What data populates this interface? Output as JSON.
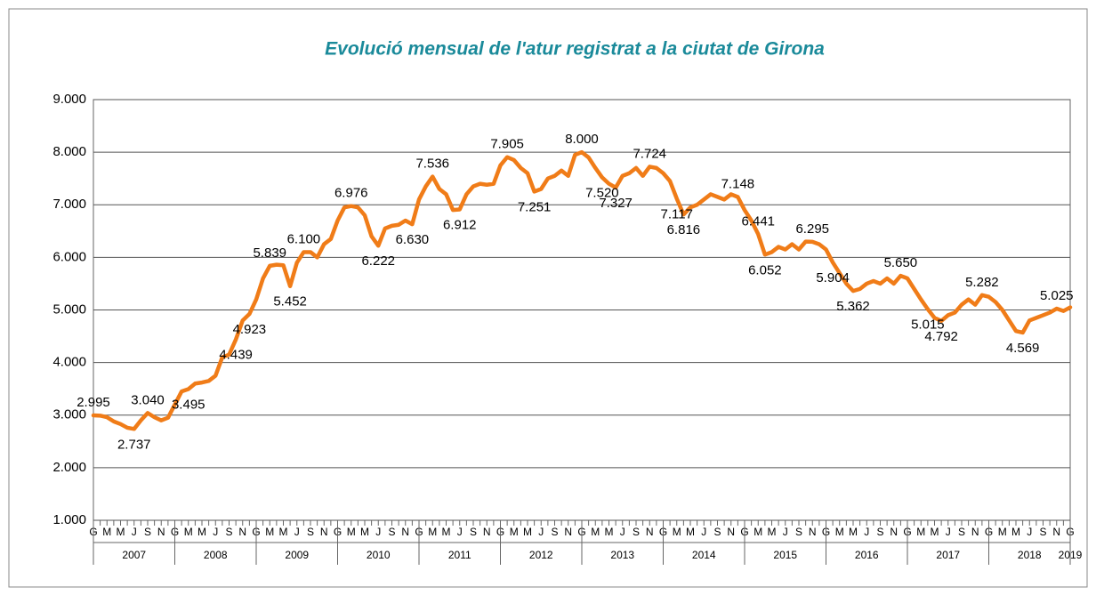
{
  "chart_data": {
    "type": "line",
    "title": "Evolució mensual de l'atur registrat a la ciutat de Girona",
    "categories": [
      "G",
      null,
      "M",
      null,
      "M",
      null,
      "J",
      null,
      "S",
      null,
      "N",
      null,
      "G",
      null,
      "M",
      null,
      "M",
      null,
      "J",
      null,
      "S",
      null,
      "N",
      null,
      "G",
      null,
      "M",
      null,
      "M",
      null,
      "J",
      null,
      "S",
      null,
      "N",
      null,
      "G",
      null,
      "M",
      null,
      "M",
      null,
      "J",
      null,
      "S",
      null,
      "N",
      null,
      "G",
      null,
      "M",
      null,
      "M",
      null,
      "J",
      null,
      "S",
      null,
      "N",
      null,
      "G",
      null,
      "M",
      null,
      "M",
      null,
      "J",
      null,
      "S",
      null,
      "N",
      null,
      "G",
      null,
      "M",
      null,
      "M",
      null,
      "J",
      null,
      "S",
      null,
      "N",
      null,
      "G",
      null,
      "M",
      null,
      "M",
      null,
      "J",
      null,
      "S",
      null,
      "N",
      null,
      "G",
      null,
      "M",
      null,
      "M",
      null,
      "J",
      null,
      "S",
      null,
      "N",
      null,
      "G",
      null,
      "M",
      null,
      "M",
      null,
      "J",
      null,
      "S",
      null,
      "N",
      null,
      "G",
      null,
      "M",
      null,
      "M",
      null,
      "J",
      null,
      "S",
      null,
      "N",
      null,
      "G",
      null,
      "M",
      null,
      "M",
      null,
      "J",
      null,
      "S",
      null,
      "N",
      null,
      "G"
    ],
    "year_groups": [
      "2007",
      "2008",
      "2009",
      "2010",
      "2011",
      "2012",
      "2013",
      "2014",
      "2015",
      "2016",
      "2017",
      "2018",
      "2019"
    ],
    "series": [
      {
        "name": "Atur registrat",
        "color": "#f07c18",
        "values": [
          2995,
          2990,
          2960,
          2880,
          2830,
          2760,
          2737,
          2900,
          3040,
          2960,
          2900,
          2950,
          3200,
          3450,
          3495,
          3600,
          3620,
          3650,
          3750,
          4100,
          4150,
          4439,
          4800,
          4923,
          5200,
          5600,
          5839,
          5860,
          5850,
          5452,
          5900,
          6100,
          6100,
          6000,
          6250,
          6350,
          6700,
          6950,
          6976,
          6950,
          6800,
          6400,
          6222,
          6550,
          6600,
          6620,
          6700,
          6630,
          7100,
          7350,
          7536,
          7300,
          7200,
          6900,
          6912,
          7200,
          7350,
          7400,
          7380,
          7400,
          7750,
          7905,
          7850,
          7700,
          7600,
          7251,
          7300,
          7500,
          7550,
          7650,
          7550,
          7950,
          8000,
          7900,
          7700,
          7520,
          7400,
          7327,
          7550,
          7600,
          7700,
          7550,
          7724,
          7700,
          7600,
          7450,
          7117,
          6816,
          6950,
          7000,
          7100,
          7200,
          7150,
          7100,
          7200,
          7148,
          6900,
          6700,
          6441,
          6052,
          6100,
          6200,
          6150,
          6250,
          6150,
          6300,
          6295,
          6250,
          6150,
          5904,
          5700,
          5500,
          5362,
          5400,
          5500,
          5550,
          5500,
          5600,
          5500,
          5650,
          5600,
          5400,
          5200,
          5015,
          4850,
          4792,
          4900,
          4950,
          5100,
          5200,
          5100,
          5282,
          5250,
          5150,
          5000,
          4800,
          4600,
          4569,
          4800,
          4850,
          4900,
          4950,
          5025,
          4980,
          5050
        ],
        "value_labels": [
          "2.995",
          null,
          null,
          null,
          null,
          null,
          "2.737",
          null,
          "3.040",
          null,
          null,
          null,
          null,
          null,
          "3.495",
          null,
          null,
          null,
          null,
          null,
          null,
          "4.439",
          null,
          "4.923",
          null,
          null,
          "5.839",
          null,
          null,
          "5.452",
          null,
          "6.100",
          null,
          null,
          null,
          null,
          null,
          null,
          "6.976",
          null,
          null,
          null,
          "6.222",
          null,
          null,
          null,
          null,
          "6.630",
          null,
          null,
          "7.536",
          null,
          null,
          null,
          "6.912",
          null,
          null,
          null,
          null,
          null,
          null,
          "7.905",
          null,
          null,
          null,
          "7.251",
          null,
          null,
          null,
          null,
          null,
          null,
          "8.000",
          null,
          null,
          "7.520",
          null,
          "7.327",
          null,
          null,
          null,
          null,
          "7.724",
          null,
          null,
          null,
          "7.117",
          "6.816",
          null,
          null,
          null,
          null,
          null,
          null,
          null,
          "7.148",
          null,
          null,
          "6.441",
          "6.052",
          null,
          null,
          null,
          null,
          null,
          null,
          "6.295",
          null,
          null,
          "5.904",
          null,
          null,
          "5.362",
          null,
          null,
          null,
          null,
          null,
          null,
          "5.650",
          null,
          null,
          null,
          "5.015",
          null,
          "4.792",
          null,
          null,
          null,
          null,
          null,
          "5.282",
          null,
          null,
          null,
          null,
          null,
          "4.569",
          null,
          null,
          null,
          null,
          "5.025",
          null,
          null
        ]
      }
    ],
    "ylim": [
      1000,
      9000
    ],
    "yticks": [
      {
        "value": 1000,
        "label": "1.000"
      },
      {
        "value": 2000,
        "label": "2.000"
      },
      {
        "value": 3000,
        "label": "3.000"
      },
      {
        "value": 4000,
        "label": "4.000"
      },
      {
        "value": 5000,
        "label": "5.000"
      },
      {
        "value": 6000,
        "label": "6.000"
      },
      {
        "value": 7000,
        "label": "7.000"
      },
      {
        "value": 8000,
        "label": "8.000"
      },
      {
        "value": 9000,
        "label": "9.000"
      }
    ],
    "grid": true
  }
}
